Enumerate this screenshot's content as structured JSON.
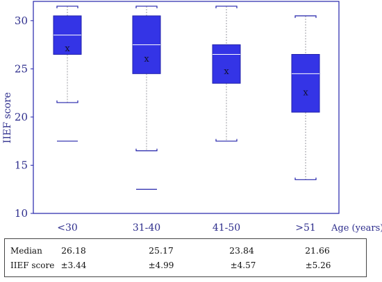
{
  "chart_data": {
    "type": "boxplot",
    "ylabel": "IIEF  score",
    "xlabel": "Age (years)",
    "ylim": [
      10,
      32
    ],
    "yticks": [
      10,
      15,
      20,
      25,
      30
    ],
    "categories": [
      "<30",
      "31-40",
      "41-50",
      ">51"
    ],
    "boxes": [
      {
        "category": "<30",
        "whisker_low": 21.5,
        "q1": 26.5,
        "median": 28.5,
        "q3": 30.5,
        "whisker_high": 31.5,
        "mean": 27.2,
        "outlier": 17.5
      },
      {
        "category": "31-40",
        "whisker_low": 16.5,
        "q1": 24.5,
        "median": 27.5,
        "q3": 30.5,
        "whisker_high": 31.5,
        "mean": 26.1,
        "outlier": 12.5
      },
      {
        "category": "41-50",
        "whisker_low": 17.5,
        "q1": 23.5,
        "median": 26.5,
        "q3": 27.5,
        "whisker_high": 31.5,
        "mean": 24.8,
        "outlier": null
      },
      {
        "category": ">51",
        "whisker_low": 13.5,
        "q1": 20.5,
        "median": 24.5,
        "q3": 26.5,
        "whisker_high": 30.5,
        "mean": 22.6,
        "outlier": null
      }
    ],
    "mean_marker": "x",
    "colors": {
      "box": "#3434e6",
      "box_edge": "#2222aa",
      "median": "#ffffff",
      "frame": "#2222aa",
      "whisker": "#9999a0",
      "text": "#2d2d8c"
    }
  },
  "table": {
    "row1_label": "Median",
    "row2_label": "IIEF score",
    "medians": [
      "26.18",
      "25.17",
      "23.84",
      "21.66"
    ],
    "sds": [
      "±3.44",
      "±4.99",
      "±4.57",
      "±5.26"
    ]
  }
}
